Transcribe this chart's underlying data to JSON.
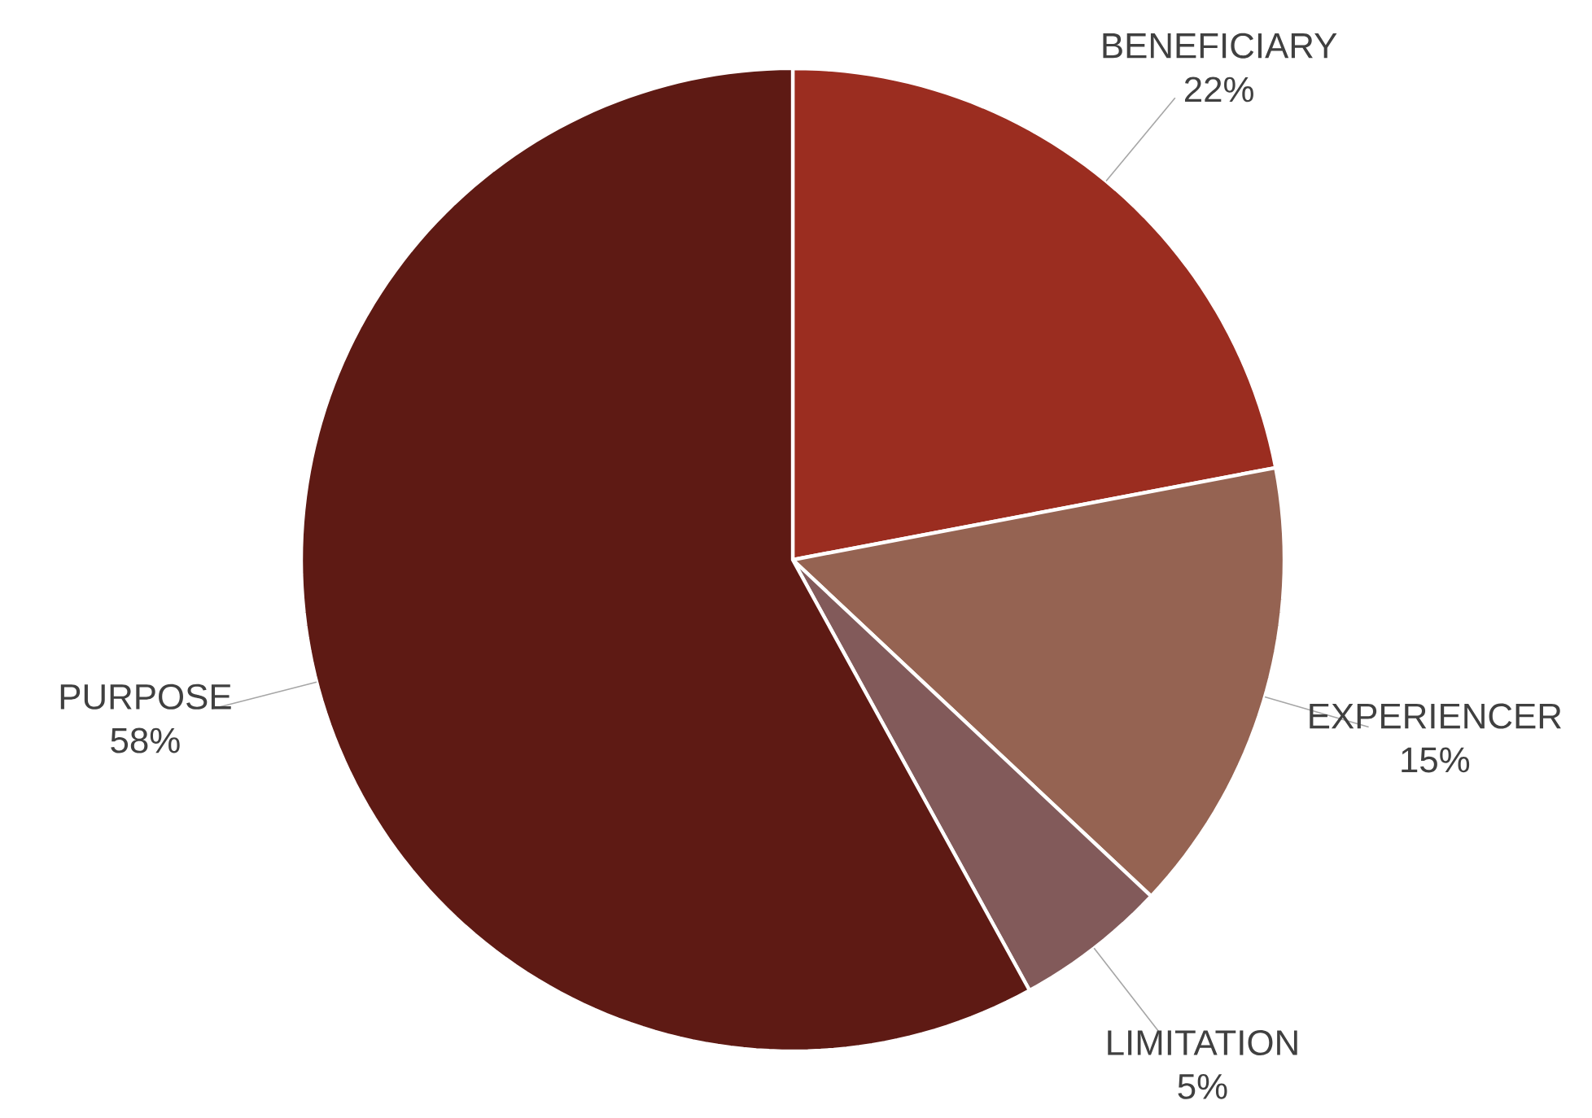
{
  "chart_data": {
    "type": "pie",
    "categories": [
      "BENEFICIARY",
      "EXPERIENCER",
      "LIMITATION",
      "PURPOSE"
    ],
    "values": [
      22,
      15,
      5,
      58
    ],
    "value_labels": [
      "22%",
      "15%",
      "5%",
      "58%"
    ],
    "colors": [
      "#9b2d20",
      "#956352",
      "#825a5a",
      "#5e1a14"
    ]
  }
}
